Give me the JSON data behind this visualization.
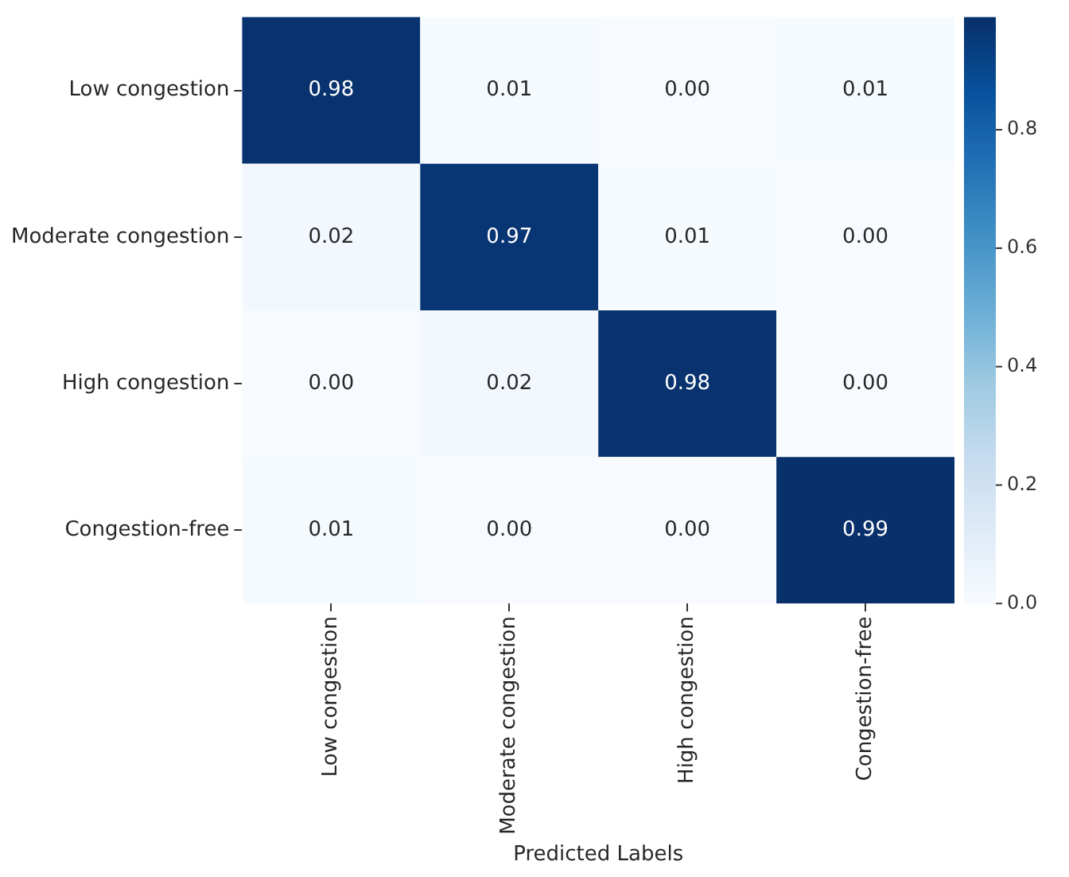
{
  "chart_data": {
    "type": "heatmap",
    "xlabel": "Predicted Labels",
    "categories": [
      "Low congestion",
      "Moderate congestion",
      "High congestion",
      "Congestion-free"
    ],
    "y_categories": [
      "Low congestion",
      "Moderate congestion",
      "High congestion",
      "Congestion-free"
    ],
    "cells": [
      [
        0.98,
        0.01,
        0.0,
        0.01
      ],
      [
        0.02,
        0.97,
        0.01,
        0.0
      ],
      [
        0.0,
        0.02,
        0.98,
        0.0
      ],
      [
        0.01,
        0.0,
        0.0,
        0.99
      ]
    ],
    "cell_labels": [
      [
        "0.98",
        "0.01",
        "0.00",
        "0.01"
      ],
      [
        "0.02",
        "0.97",
        "0.01",
        "0.00"
      ],
      [
        "0.00",
        "0.02",
        "0.98",
        "0.00"
      ],
      [
        "0.01",
        "0.00",
        "0.00",
        "0.99"
      ]
    ],
    "clim": [
      0,
      0.99
    ],
    "cticks": [
      {
        "value": 0,
        "label": "0.0"
      },
      {
        "value": 0.2,
        "label": "0.2"
      },
      {
        "value": 0.4,
        "label": "0.4"
      },
      {
        "value": 0.6,
        "label": "0.6"
      },
      {
        "value": 0.8,
        "label": "0.8"
      }
    ]
  }
}
